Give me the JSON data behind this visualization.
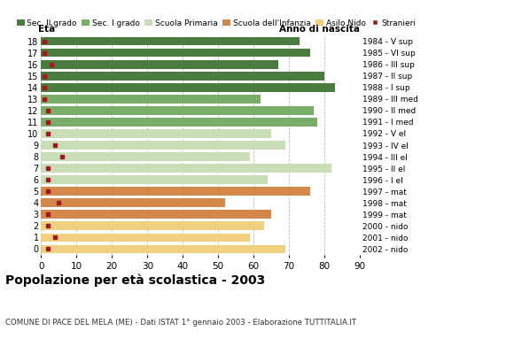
{
  "ages": [
    18,
    17,
    16,
    15,
    14,
    13,
    12,
    11,
    10,
    9,
    8,
    7,
    6,
    5,
    4,
    3,
    2,
    1,
    0
  ],
  "years": [
    "1984 - V sup",
    "1985 - VI sup",
    "1986 - III sup",
    "1987 - II sup",
    "1988 - I sup",
    "1989 - III med",
    "1990 - II med",
    "1991 - I med",
    "1992 - V el",
    "1993 - IV el",
    "1994 - III el",
    "1995 - II el",
    "1996 - I el",
    "1997 - mat",
    "1998 - mat",
    "1999 - mat",
    "2000 - nido",
    "2001 - nido",
    "2002 - nido"
  ],
  "bar_values": [
    73,
    76,
    67,
    80,
    83,
    62,
    77,
    78,
    65,
    69,
    59,
    82,
    64,
    76,
    52,
    65,
    63,
    59,
    69
  ],
  "stranieri": [
    1,
    1,
    3,
    1,
    1,
    1,
    2,
    2,
    2,
    4,
    6,
    2,
    2,
    2,
    5,
    2,
    2,
    4,
    2
  ],
  "school_colors": [
    "#4a7c3f",
    "#4a7c3f",
    "#4a7c3f",
    "#4a7c3f",
    "#4a7c3f",
    "#7aad6a",
    "#7aad6a",
    "#7aad6a",
    "#c8ddb8",
    "#c8ddb8",
    "#c8ddb8",
    "#c8ddb8",
    "#c8ddb8",
    "#d4874a",
    "#d4874a",
    "#d4874a",
    "#f0d080",
    "#f0d080",
    "#f0d080"
  ],
  "legend_labels": [
    "Sec. II grado",
    "Sec. I grado",
    "Scuola Primaria",
    "Scuola dell'Infanzia",
    "Asilo Nido",
    "Stranieri"
  ],
  "legend_colors": [
    "#4a7c3f",
    "#7aad6a",
    "#c8ddb8",
    "#d4874a",
    "#f0d080",
    "#9b1c1c"
  ],
  "title": "Popolazione per età scolastica - 2003",
  "subtitle": "COMUNE DI PACE DEL MELA (ME) - Dati ISTAT 1° gennaio 2003 - Elaborazione TUTTITALIA.IT",
  "xlabel_eta": "Età",
  "ylabel_anno": "Anno di nascita",
  "xlim": [
    0,
    90
  ],
  "xticks": [
    0,
    10,
    20,
    30,
    40,
    50,
    60,
    70,
    80,
    90
  ],
  "stranieri_color": "#9b1c1c",
  "bg_color": "#ffffff",
  "grid_color": "#bbbbbb"
}
